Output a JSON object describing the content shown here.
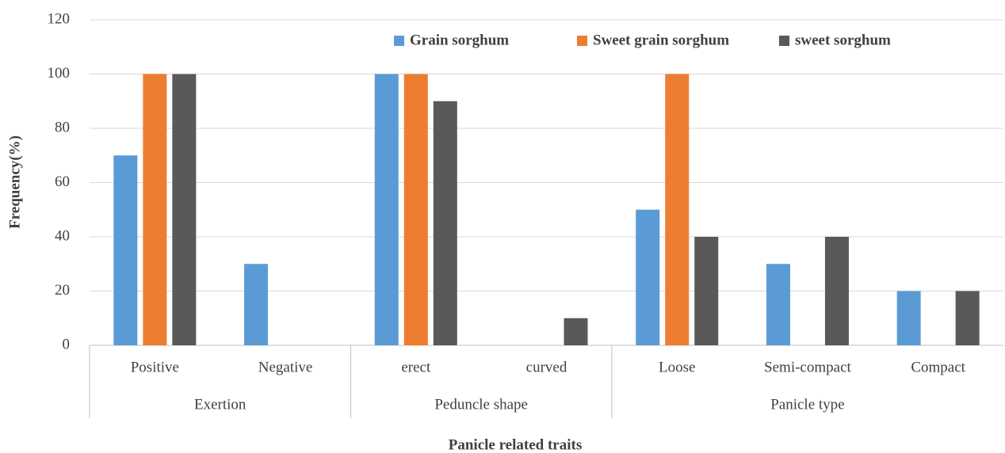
{
  "chart_data": {
    "type": "bar",
    "y_label": "Frequency(%)",
    "x_label": "Panicle related traits",
    "categories": [
      "Positive",
      "Negative",
      "erect",
      "curved",
      "Loose",
      "Semi-compact",
      "Compact"
    ],
    "category_groups": [
      "Exertion",
      "Exertion",
      "Peduncle shape",
      "Peduncle shape",
      "Panicle type",
      "Panicle type",
      "Panicle type"
    ],
    "series": [
      {
        "name": "Grain sorghum",
        "color": "#5b9bd5",
        "values": [
          70,
          30,
          100,
          0,
          50,
          30,
          20
        ]
      },
      {
        "name": "Sweet grain sorghum",
        "color": "#ed7d31",
        "values": [
          100,
          0,
          100,
          0,
          100,
          0,
          0
        ]
      },
      {
        "name": "sweet sorghum",
        "color": "#595959",
        "values": [
          100,
          0,
          90,
          10,
          40,
          40,
          20
        ]
      }
    ],
    "ylim": [
      0,
      120
    ],
    "yticks": [
      0,
      20,
      40,
      60,
      80,
      100,
      120
    ],
    "grid": true,
    "legend": "top"
  }
}
